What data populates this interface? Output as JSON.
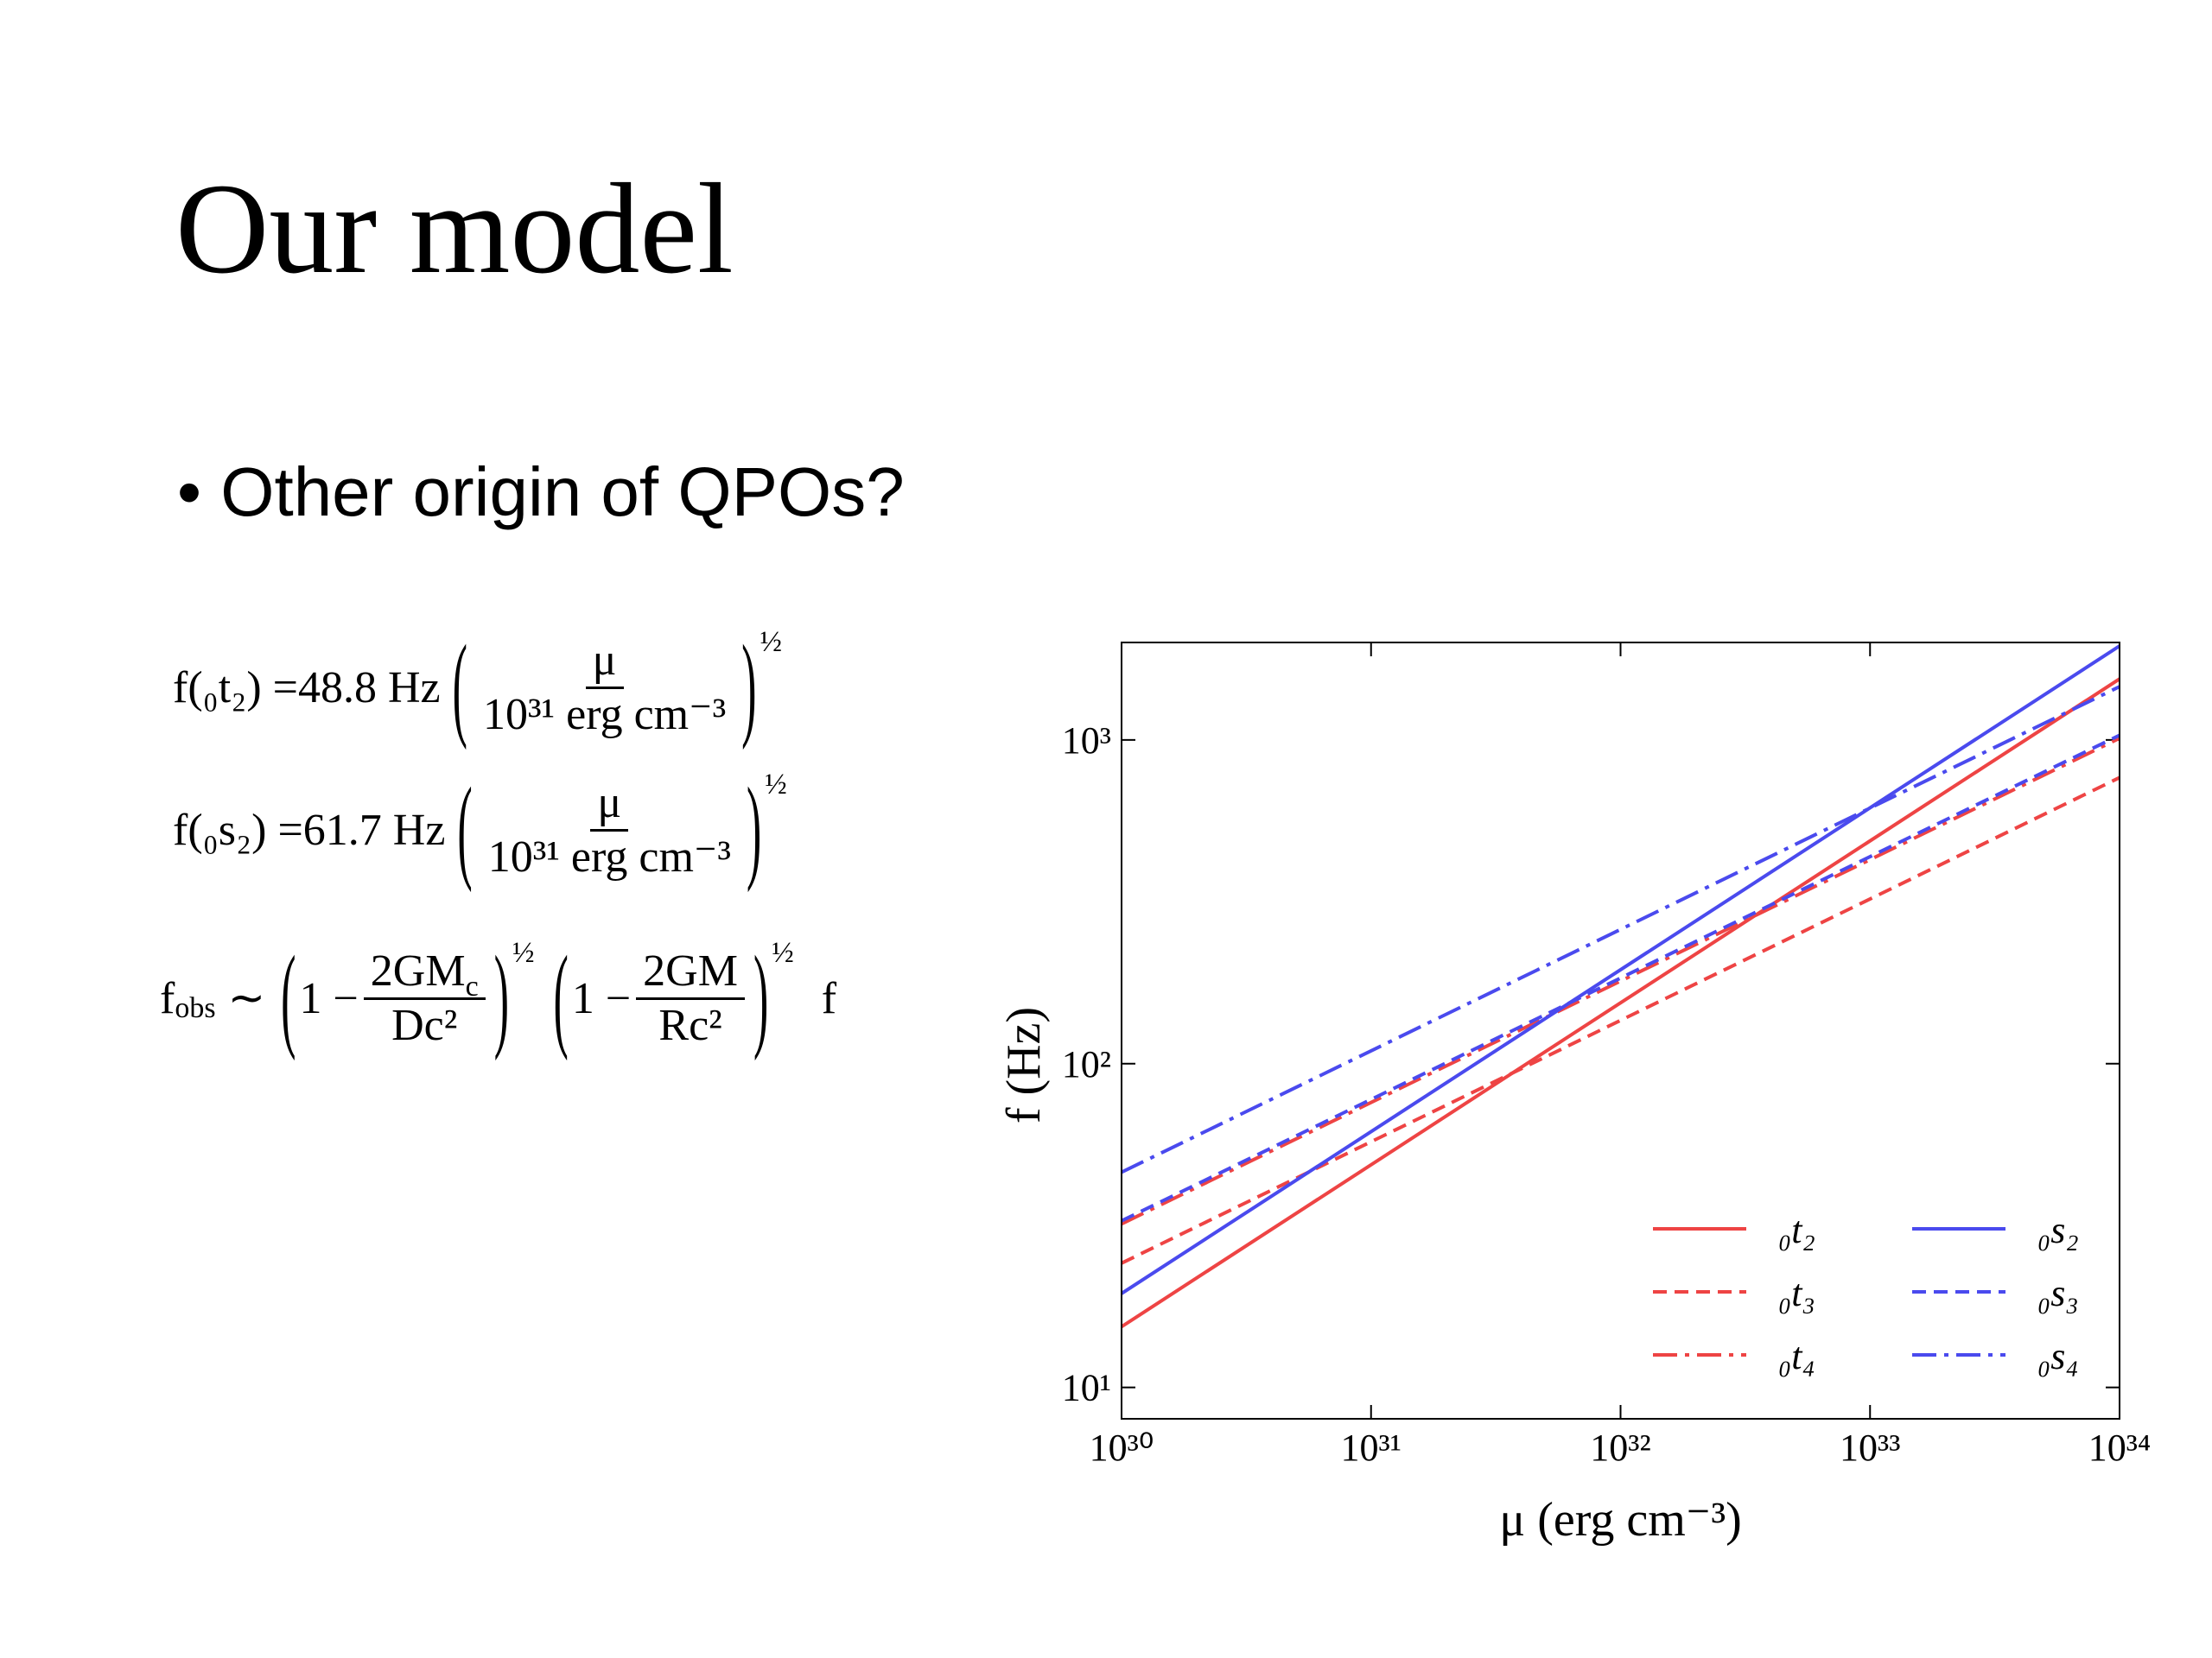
{
  "slide": {
    "title": "Our model",
    "bullet": "Other origin of QPOs?",
    "equations": [
      {
        "lhs": "f(₀t₂) =48.8 Hz",
        "num": "μ",
        "den": "10³¹ erg cm⁻³",
        "exp": "½"
      },
      {
        "lhs": "f(₀s₂) =61.7 Hz",
        "num": "μ",
        "den": "10³¹ erg cm⁻³",
        "exp": "½"
      }
    ],
    "observed": {
      "lhs": "f",
      "lhs_sub": "obs",
      "relation": "∼",
      "factors": [
        {
          "pre": "1 −",
          "num": "2GM",
          "num_sub": "c",
          "den": "Dc²",
          "exp": "½"
        },
        {
          "pre": "1 −",
          "num": "2GM",
          "den": "Rc²",
          "exp": "½"
        }
      ],
      "post": "f"
    }
  },
  "chart_data": {
    "type": "line",
    "x_label": "μ (erg cm⁻³)",
    "y_label": "f (Hz)",
    "log_x": true,
    "log_y": true,
    "xlim": [
      1e+30,
      1e+34
    ],
    "ylim": [
      8,
      2000
    ],
    "xticks": [
      {
        "value": 1e+30,
        "label": "10³⁰"
      },
      {
        "value": 1e+31,
        "label": "10³¹"
      },
      {
        "value": 1e+32,
        "label": "10³²"
      },
      {
        "value": 1e+33,
        "label": "10³³"
      },
      {
        "value": 1e+34,
        "label": "10³⁴"
      }
    ],
    "yticks": [
      {
        "value": 10,
        "label": "10¹"
      },
      {
        "value": 100,
        "label": "10²"
      },
      {
        "value": 1000,
        "label": "10³"
      }
    ],
    "x": [
      1e+30,
      1e+34
    ],
    "series": [
      {
        "name": "₀t₂",
        "color": "#ee4444",
        "dash": "solid",
        "values": [
          15.4,
          1543
        ]
      },
      {
        "name": "₀t₃",
        "color": "#ee4444",
        "dash": "dashed",
        "values": [
          24.2,
          765
        ]
      },
      {
        "name": "₀t₄",
        "color": "#ee4444",
        "dash": "dashdot",
        "values": [
          32,
          1012
        ]
      },
      {
        "name": "₀s₂",
        "color": "#4a4aee",
        "dash": "solid",
        "values": [
          19.5,
          1951
        ]
      },
      {
        "name": "₀s₃",
        "color": "#4a4aee",
        "dash": "dashed",
        "values": [
          32.7,
          1034
        ]
      },
      {
        "name": "₀s₄",
        "color": "#4a4aee",
        "dash": "dashdot",
        "values": [
          46.2,
          1461
        ]
      }
    ],
    "legend": "lower right"
  }
}
